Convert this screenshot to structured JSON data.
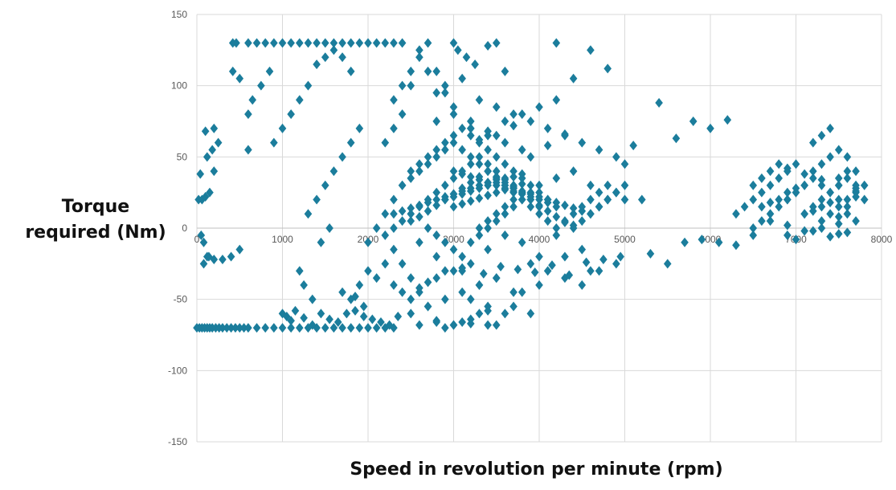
{
  "chart_data": {
    "type": "scatter",
    "title": "",
    "xlabel": "Speed in revolution per minute (rpm)",
    "ylabel_lines": [
      "Torque",
      "required (Nm)"
    ],
    "xlim": [
      0,
      8000
    ],
    "ylim": [
      -150,
      150
    ],
    "xticks": [
      0,
      1000,
      2000,
      3000,
      4000,
      5000,
      6000,
      7000,
      8000
    ],
    "yticks": [
      -150,
      -100,
      -50,
      0,
      50,
      100,
      150
    ],
    "grid": true,
    "legend": "none",
    "marker_color": "#1b7d9c",
    "marker": "diamond",
    "series": [
      {
        "x": [
          0,
          30,
          60,
          90,
          120,
          150,
          180,
          220,
          260,
          300,
          350,
          400,
          450,
          500,
          550,
          600,
          700,
          800,
          900,
          1000,
          1100,
          1200,
          1300,
          1400,
          1500,
          1600,
          1700,
          1800,
          1900,
          2000,
          2100,
          2200,
          2300,
          420,
          460,
          600,
          700,
          800,
          900,
          1000,
          1100,
          1200,
          1300,
          1400,
          1500,
          1600,
          1700,
          1800,
          1900,
          2000,
          2100,
          2200,
          2300,
          20,
          60,
          100,
          150,
          200,
          250,
          80,
          140,
          120,
          180,
          40,
          100,
          200,
          50,
          80,
          120,
          200,
          300,
          400,
          500,
          420,
          500,
          600,
          650,
          750,
          850,
          600,
          900,
          1000,
          1100,
          1200,
          1300,
          1400,
          1500,
          1600,
          1700,
          1800,
          1000,
          1050,
          1100,
          1150,
          1250,
          1350,
          1450,
          1550,
          1650,
          1750,
          1850,
          1950,
          2050,
          2150,
          2250,
          2350,
          1300,
          1400,
          1500,
          1600,
          1700,
          1800,
          1900,
          1200,
          1250,
          1350,
          1450,
          1550,
          1700,
          1800,
          1900,
          2000,
          2100,
          2200,
          1850,
          1950,
          2000,
          2100,
          2200,
          2300,
          2400,
          2500,
          2200,
          2300,
          2400,
          2300,
          2400,
          2500,
          2600,
          2700,
          2800,
          2900,
          2400,
          2600,
          2800,
          3000,
          3200,
          2200,
          2300,
          2400,
          2500,
          2600,
          2700,
          2800,
          2900,
          3000,
          3100,
          3200,
          3300,
          3400,
          3500,
          2300,
          2400,
          2500,
          2600,
          2700,
          2800,
          2900,
          3000,
          3100,
          3200,
          3300,
          3400,
          3500,
          3600,
          3700,
          3800,
          3900,
          4000,
          2300,
          2400,
          2500,
          2600,
          2700,
          2800,
          2900,
          3000,
          3100,
          3200,
          3300,
          3400,
          3500,
          3600,
          3700,
          3800,
          3900,
          4000,
          4100,
          4200,
          4300,
          4400,
          4500,
          4600,
          4700,
          4800,
          4900,
          5000,
          2400,
          2500,
          2600,
          2700,
          2800,
          2900,
          3000,
          3100,
          3200,
          3300,
          3400,
          3500,
          3600,
          3700,
          3800,
          3900,
          4000,
          4100,
          4200,
          4300,
          4400,
          4500,
          4600,
          4700,
          4800,
          4900,
          5000,
          2500,
          2600,
          2700,
          2800,
          2900,
          3000,
          3100,
          3200,
          3300,
          3400,
          3500,
          3600,
          3700,
          3800,
          3900,
          4000,
          4100,
          4200,
          4300,
          4400,
          4500,
          4600,
          4700,
          4800,
          4900,
          2600,
          2700,
          2800,
          2900,
          3000,
          3100,
          3200,
          3300,
          3400,
          3500,
          3600,
          3700,
          3800,
          3900,
          4000,
          4100,
          4200,
          2700,
          2800,
          2900,
          3000,
          3100,
          3200,
          3300,
          3400,
          3500,
          3600,
          3700,
          3800,
          3900,
          2900,
          3000,
          3100,
          3200,
          3300,
          3400,
          3500,
          3600,
          3700,
          3800,
          3000,
          3100,
          3200,
          3300,
          3400,
          3500,
          3600,
          3700,
          3800,
          3100,
          3300,
          3500,
          3700,
          3900,
          4100,
          4300,
          4500,
          2800,
          3000,
          3200,
          3400,
          3600,
          3800,
          4000,
          4200,
          3300,
          3400,
          3500,
          3600,
          3700,
          3800,
          4000,
          4200,
          4400,
          4600,
          4800,
          3000,
          3100,
          3200,
          3300,
          3400,
          3500,
          3600,
          3700,
          3800,
          3900,
          4000,
          4100,
          3200,
          3400,
          3600,
          3800,
          4000,
          4300,
          4600,
          2500,
          2700,
          2900,
          3100,
          3300,
          3500,
          3700,
          3900,
          4100,
          4300,
          4500,
          4700,
          4900,
          5100,
          2600,
          2800,
          3000,
          3200,
          3400,
          3600,
          3800,
          4000,
          4200,
          4400,
          2500,
          2700,
          2900,
          3100,
          3300,
          3500,
          3700,
          3900,
          2600,
          2800,
          3000,
          3200,
          3400,
          3000,
          3050,
          3150,
          3250,
          3400,
          3500,
          3600,
          2300,
          2400,
          2500,
          2600,
          2700,
          2800,
          4200,
          4400,
          4600,
          4800,
          5000,
          5200,
          5400,
          5600,
          5800,
          6000,
          6200,
          4500,
          4700,
          4900,
          5300,
          5500,
          5700,
          5900,
          6100,
          6300,
          6500,
          6300,
          6400,
          6500,
          6600,
          6700,
          6800,
          6900,
          7000,
          7100,
          7200,
          7300,
          7400,
          7500,
          7600,
          7700,
          7800,
          6500,
          6600,
          6700,
          6800,
          6900,
          7000,
          7100,
          7200,
          7300,
          7400,
          7500,
          7600,
          7700,
          7800,
          6500,
          6600,
          6700,
          6800,
          6900,
          7000,
          7100,
          7200,
          7300,
          7400,
          7500,
          7600,
          7700,
          6600,
          6700,
          6800,
          6900,
          7000,
          7100,
          7200,
          7300,
          7400,
          7500,
          7600,
          7700,
          6700,
          6900,
          7100,
          7300,
          7500,
          7700,
          6900,
          7100,
          7300,
          7500,
          7700,
          7200,
          7300,
          7400,
          7500,
          7600,
          7700,
          7300,
          7400,
          7500,
          7600,
          6900,
          7000,
          7200,
          7400,
          7500,
          7600,
          3500,
          3700,
          3600,
          3800,
          3400,
          3900,
          3300,
          4100,
          3200,
          4300,
          2900,
          3100,
          3350,
          3550,
          3750,
          3950,
          4150,
          4350,
          4550,
          4750,
          4950
        ],
        "y": [
          -70,
          -70,
          -70,
          -70,
          -70,
          -70,
          -70,
          -70,
          -70,
          -70,
          -70,
          -70,
          -70,
          -70,
          -70,
          -70,
          -70,
          -70,
          -70,
          -70,
          -70,
          -70,
          -70,
          -70,
          -70,
          -70,
          -70,
          -70,
          -70,
          -70,
          -70,
          -70,
          -70,
          130,
          130,
          130,
          130,
          130,
          130,
          130,
          130,
          130,
          130,
          130,
          130,
          130,
          130,
          130,
          130,
          130,
          130,
          130,
          130,
          20,
          20,
          22,
          25,
          40,
          60,
          -25,
          -20,
          50,
          55,
          38,
          68,
          70,
          -5,
          -10,
          -20,
          -22,
          -22,
          -20,
          -15,
          110,
          105,
          80,
          90,
          100,
          110,
          55,
          60,
          70,
          80,
          90,
          100,
          115,
          120,
          125,
          120,
          110,
          -60,
          -62,
          -65,
          -58,
          -63,
          -68,
          -60,
          -64,
          -66,
          -60,
          -58,
          -62,
          -64,
          -66,
          -68,
          -62,
          10,
          20,
          30,
          40,
          50,
          60,
          70,
          -30,
          -40,
          -50,
          -10,
          0,
          -45,
          -50,
          -40,
          -30,
          -35,
          -25,
          -48,
          -55,
          -10,
          0,
          10,
          20,
          30,
          40,
          60,
          70,
          80,
          90,
          100,
          110,
          120,
          130,
          110,
          100,
          130,
          125,
          95,
          85,
          75,
          -5,
          -15,
          -25,
          -35,
          -45,
          -55,
          -65,
          -70,
          -68,
          -66,
          -64,
          -60,
          -58,
          -68,
          0,
          5,
          10,
          15,
          20,
          25,
          30,
          35,
          40,
          45,
          50,
          45,
          40,
          35,
          30,
          25,
          20,
          15,
          10,
          12,
          14,
          16,
          18,
          20,
          22,
          24,
          26,
          28,
          30,
          32,
          34,
          30,
          28,
          26,
          24,
          22,
          20,
          18,
          16,
          14,
          12,
          10,
          15,
          20,
          25,
          30,
          30,
          35,
          40,
          45,
          50,
          55,
          60,
          55,
          50,
          45,
          40,
          35,
          30,
          25,
          20,
          15,
          10,
          5,
          0,
          5,
          10,
          15,
          20,
          25,
          30,
          25,
          20,
          5,
          8,
          12,
          16,
          20,
          24,
          28,
          32,
          36,
          40,
          36,
          32,
          28,
          24,
          20,
          16,
          12,
          8,
          4,
          2,
          5,
          10,
          15,
          20,
          25,
          45,
          50,
          55,
          60,
          65,
          70,
          65,
          60,
          55,
          50,
          45,
          40,
          35,
          30,
          25,
          20,
          15,
          0,
          -5,
          -10,
          -15,
          -20,
          -10,
          -5,
          0,
          5,
          10,
          15,
          20,
          25,
          20,
          22,
          24,
          26,
          28,
          30,
          32,
          34,
          36,
          38,
          15,
          17,
          19,
          21,
          23,
          25,
          27,
          29,
          31,
          -30,
          -40,
          -35,
          -45,
          -25,
          -30,
          -20,
          -15,
          75,
          80,
          70,
          65,
          75,
          80,
          85,
          90,
          0,
          5,
          10,
          15,
          20,
          25,
          30,
          35,
          40,
          30,
          20,
          40,
          38,
          36,
          34,
          32,
          30,
          28,
          26,
          24,
          22,
          20,
          18,
          -50,
          -55,
          -60,
          -45,
          -40,
          -35,
          -30,
          100,
          110,
          95,
          105,
          90,
          85,
          80,
          75,
          70,
          65,
          60,
          55,
          50,
          58,
          -10,
          -20,
          -30,
          -25,
          -15,
          -5,
          -10,
          -20,
          -5,
          0,
          -60,
          -55,
          -50,
          -45,
          -40,
          -35,
          -55,
          -60,
          -68,
          -66,
          -68,
          -67,
          -68,
          130,
          125,
          120,
          115,
          128,
          130,
          110,
          -40,
          -45,
          -50,
          -42,
          -38,
          -35,
          130,
          105,
          125,
          112,
          45,
          20,
          88,
          63,
          75,
          70,
          76,
          -40,
          -30,
          -25,
          -18,
          -25,
          -10,
          -8,
          -10,
          -12,
          -5,
          10,
          15,
          20,
          25,
          30,
          35,
          40,
          45,
          10,
          15,
          20,
          25,
          30,
          35,
          40,
          20,
          0,
          5,
          10,
          15,
          20,
          25,
          30,
          35,
          5,
          10,
          15,
          20,
          25,
          30,
          30,
          35,
          40,
          45,
          20,
          25,
          30,
          40,
          45,
          50,
          35,
          40,
          30,
          15,
          18,
          20,
          25,
          28,
          10,
          12,
          15,
          18,
          8,
          10,
          28,
          5,
          2,
          -2,
          0,
          3,
          5,
          42,
          38,
          34,
          30,
          26,
          60,
          65,
          70,
          55,
          50,
          22,
          30,
          25,
          20,
          15,
          -5,
          -8,
          -2,
          -6,
          -4,
          -3,
          65,
          72,
          60,
          55,
          68,
          50,
          62,
          58,
          70,
          66,
          -30,
          -28,
          -32,
          -27,
          -29,
          -31,
          -26,
          -33,
          -24,
          -22,
          -20
        ]
      }
    ]
  }
}
